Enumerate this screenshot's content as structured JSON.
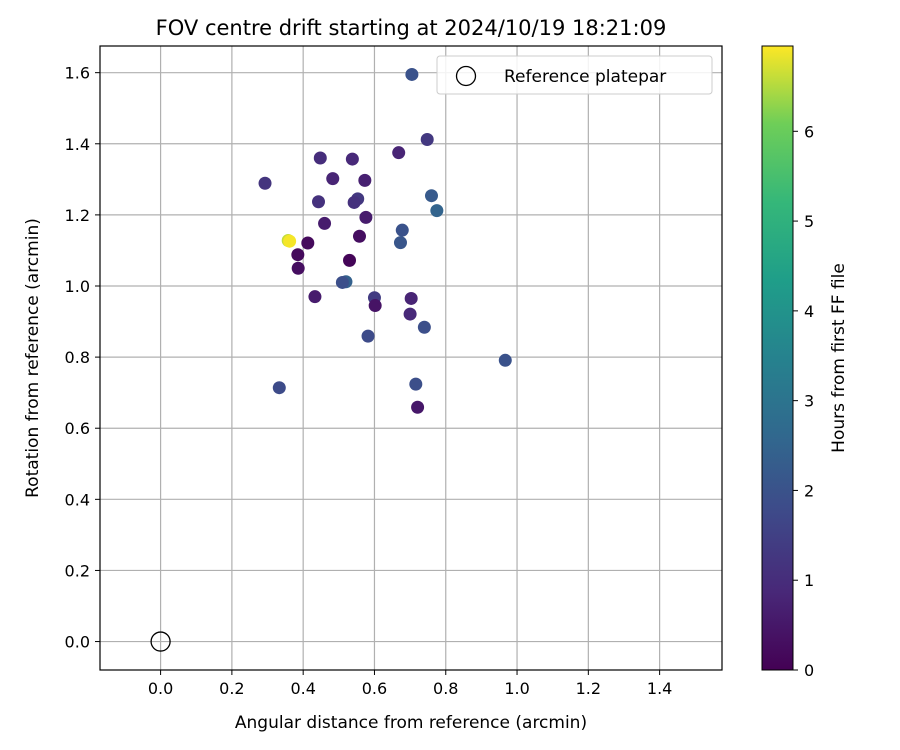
{
  "chart_data": {
    "type": "scatter",
    "title": "FOV centre drift starting at 2024/10/19 18:21:09",
    "xlabel": "Angular distance from reference (arcmin)",
    "ylabel": "Rotation from reference (arcmin)",
    "xlim": [
      -0.17,
      1.575
    ],
    "ylim": [
      -0.08,
      1.675
    ],
    "xticks": [
      "0.0",
      "0.2",
      "0.4",
      "0.6",
      "0.8",
      "1.0",
      "1.2",
      "1.4"
    ],
    "xtick_values": [
      0.0,
      0.2,
      0.4,
      0.6,
      0.8,
      1.0,
      1.2,
      1.4
    ],
    "yticks": [
      "0.0",
      "0.2",
      "0.4",
      "0.6",
      "0.8",
      "1.0",
      "1.2",
      "1.4",
      "1.6"
    ],
    "ytick_values": [
      0.0,
      0.2,
      0.4,
      0.6,
      0.8,
      1.0,
      1.2,
      1.4,
      1.6
    ],
    "grid": true,
    "legend": {
      "placement": "top-right",
      "entries": [
        "Reference platepar"
      ]
    },
    "reference_point": {
      "x": 0.0,
      "y": 0.0,
      "label": "Reference platepar"
    },
    "colorbar": {
      "label": "Hours from first FF file",
      "range": [
        0,
        6.95
      ],
      "ticks": [
        "0",
        "1",
        "2",
        "3",
        "4",
        "5",
        "6"
      ],
      "tick_values": [
        0,
        1,
        2,
        3,
        4,
        5,
        6
      ],
      "colormap": "viridis"
    },
    "points": [
      {
        "x": 0.705,
        "y": 1.595,
        "c": 2.0
      },
      {
        "x": 0.748,
        "y": 1.412,
        "c": 1.3
      },
      {
        "x": 0.668,
        "y": 1.375,
        "c": 0.8
      },
      {
        "x": 0.448,
        "y": 1.36,
        "c": 1.0
      },
      {
        "x": 0.538,
        "y": 1.357,
        "c": 0.9
      },
      {
        "x": 0.483,
        "y": 1.302,
        "c": 0.8
      },
      {
        "x": 0.573,
        "y": 1.297,
        "c": 0.7
      },
      {
        "x": 0.293,
        "y": 1.289,
        "c": 1.2
      },
      {
        "x": 0.76,
        "y": 1.254,
        "c": 2.2
      },
      {
        "x": 0.553,
        "y": 1.245,
        "c": 1.3
      },
      {
        "x": 0.443,
        "y": 1.237,
        "c": 1.1
      },
      {
        "x": 0.543,
        "y": 1.235,
        "c": 1.1
      },
      {
        "x": 0.775,
        "y": 1.212,
        "c": 2.5
      },
      {
        "x": 0.576,
        "y": 1.193,
        "c": 0.6
      },
      {
        "x": 0.46,
        "y": 1.176,
        "c": 0.6
      },
      {
        "x": 0.678,
        "y": 1.157,
        "c": 2.0
      },
      {
        "x": 0.558,
        "y": 1.14,
        "c": 0.3
      },
      {
        "x": 0.358,
        "y": 1.128,
        "c": 6.6
      },
      {
        "x": 0.362,
        "y": 1.126,
        "c": 6.9
      },
      {
        "x": 0.413,
        "y": 1.121,
        "c": 0.2
      },
      {
        "x": 0.673,
        "y": 1.122,
        "c": 2.1
      },
      {
        "x": 0.385,
        "y": 1.088,
        "c": 0.2
      },
      {
        "x": 0.53,
        "y": 1.072,
        "c": 0.1
      },
      {
        "x": 0.386,
        "y": 1.05,
        "c": 0.3
      },
      {
        "x": 0.52,
        "y": 1.012,
        "c": 2.4
      },
      {
        "x": 0.51,
        "y": 1.01,
        "c": 1.9
      },
      {
        "x": 0.433,
        "y": 0.97,
        "c": 0.6
      },
      {
        "x": 0.6,
        "y": 0.967,
        "c": 1.4
      },
      {
        "x": 0.703,
        "y": 0.965,
        "c": 0.8
      },
      {
        "x": 0.602,
        "y": 0.945,
        "c": 0.4
      },
      {
        "x": 0.7,
        "y": 0.921,
        "c": 0.9
      },
      {
        "x": 0.74,
        "y": 0.884,
        "c": 1.9
      },
      {
        "x": 0.582,
        "y": 0.859,
        "c": 1.8
      },
      {
        "x": 0.967,
        "y": 0.791,
        "c": 2.0
      },
      {
        "x": 0.333,
        "y": 0.714,
        "c": 1.8
      },
      {
        "x": 0.716,
        "y": 0.724,
        "c": 1.9
      },
      {
        "x": 0.721,
        "y": 0.659,
        "c": 0.5
      }
    ]
  }
}
